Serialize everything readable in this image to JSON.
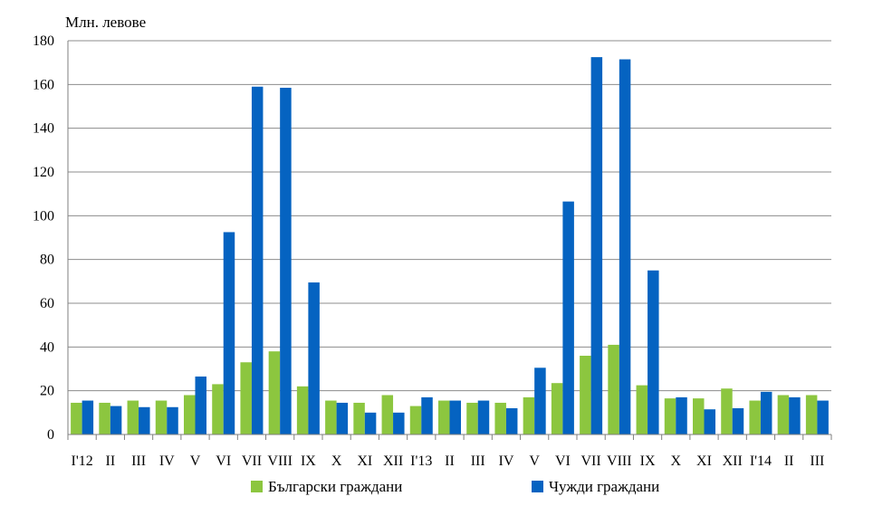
{
  "chart_data": {
    "type": "bar",
    "ylabel": "Млн. левове",
    "ylim": [
      0,
      180
    ],
    "yticks": [
      0,
      20,
      40,
      60,
      80,
      100,
      120,
      140,
      160,
      180
    ],
    "grid": true,
    "legend_position": "bottom",
    "categories": [
      "I'12",
      "II",
      "III",
      "IV",
      "V",
      "VI",
      "VII",
      "VIII",
      "IX",
      "X",
      "XI",
      "XII",
      "I'13",
      "II",
      "III",
      "IV",
      "V",
      "VI",
      "VII",
      "VIII",
      "IX",
      "X",
      "XI",
      "XII",
      "I'14",
      "II",
      "III"
    ],
    "series": [
      {
        "name": "Български граждани",
        "color": "#8cc63f",
        "values": [
          14.5,
          14.5,
          15.5,
          15.5,
          18,
          23,
          33,
          38,
          22,
          15.5,
          14.5,
          18,
          13,
          15.5,
          14.5,
          14.5,
          17,
          23.5,
          36,
          41,
          22.5,
          16.5,
          16.5,
          21,
          15.5,
          18,
          18
        ]
      },
      {
        "name": "Чужди граждани",
        "color": "#0563c1",
        "values": [
          15.5,
          13,
          12.5,
          12.5,
          26.5,
          92.5,
          159,
          158.5,
          69.5,
          14.5,
          10,
          10,
          17,
          15.5,
          15.5,
          12,
          30.5,
          106.5,
          172.5,
          171.5,
          75,
          17,
          11.5,
          12,
          19.5,
          17,
          15.5
        ]
      }
    ]
  }
}
